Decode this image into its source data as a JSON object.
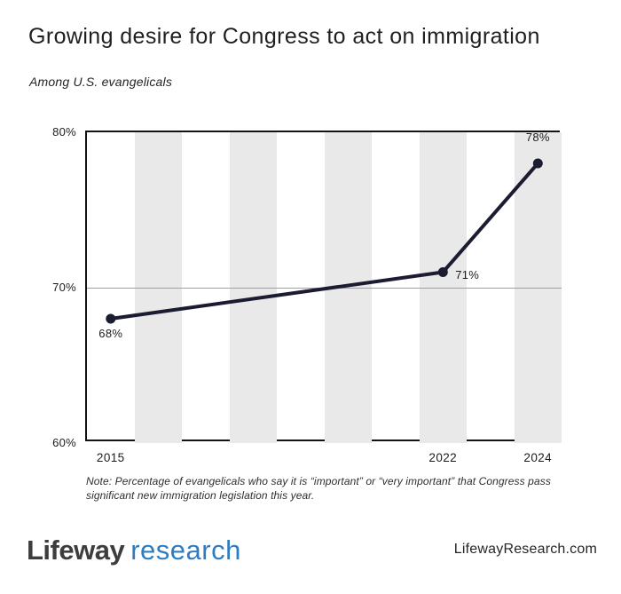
{
  "page": {
    "note": "Note: Percentage of evangelicals who say it is “important” or “very important” that Congress pass\nsignificant new immigration legislation this year.",
    "footer": {
      "logo_primary": "Lifeway",
      "logo_secondary": "research",
      "website": "LifewayResearch.com"
    }
  },
  "chart_data": {
    "type": "line",
    "title": "Growing desire for Congress to act on immigration",
    "subtitle": "Among U.S. evangelicals",
    "x": [
      2015,
      2022,
      2024
    ],
    "values": [
      68,
      71,
      78
    ],
    "point_labels": [
      "68%",
      "71%",
      "78%"
    ],
    "point_label_positions": [
      "below",
      "right",
      "above"
    ],
    "xlim": [
      2014.5,
      2024.5
    ],
    "ylim": [
      60,
      80
    ],
    "y_ticks": [
      {
        "value": 80,
        "label": "80%"
      },
      {
        "value": 70,
        "label": "70%"
      },
      {
        "value": 60,
        "label": "60%"
      }
    ],
    "x_ticks": [
      {
        "value": 2015,
        "label": "2015"
      },
      {
        "value": 2022,
        "label": "2022"
      },
      {
        "value": 2024,
        "label": "2024"
      }
    ],
    "inner_gridlines": [
      70
    ],
    "background_stripe_years": [
      2016,
      2018,
      2020,
      2022,
      2024
    ],
    "stripe_width_years": 1,
    "grid": "horizontal gridline at 70% only; plain black frame; no legend",
    "colors": {
      "line": "#1b1b31",
      "point": "#1b1b31",
      "stripe": "#e9e9e9",
      "gridline": "#9f9f9f",
      "frame": "#131313",
      "logo_blue": "#2e7cc1"
    }
  }
}
